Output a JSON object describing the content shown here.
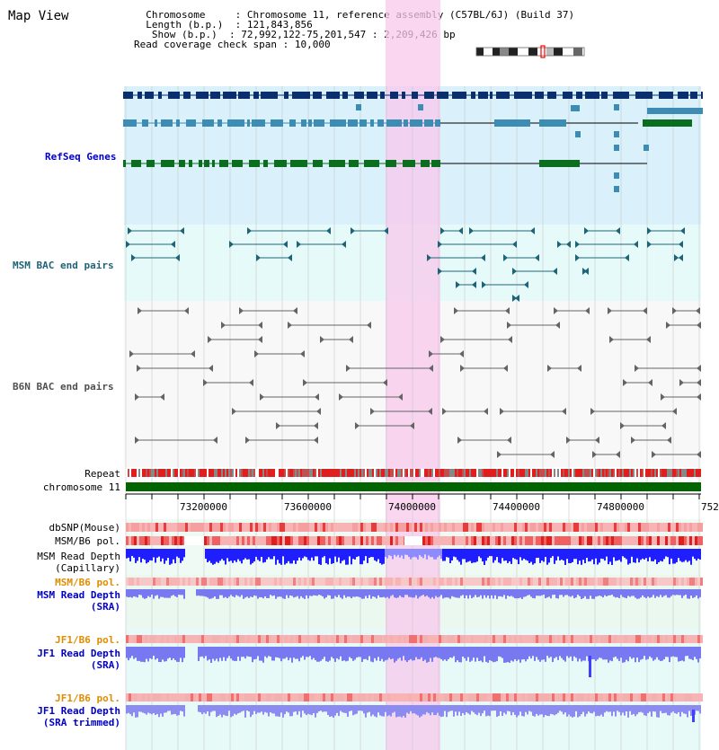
{
  "app": {
    "title": "Map View"
  },
  "info": {
    "chromosome_key": "Chromosome",
    "chromosome_val": "Chromosome 11, reference assembly (C57BL/6J) (Build 37)",
    "length_key": "Length (b.p.)",
    "length_val": "121,843,856",
    "show_key": "Show (b.p.)",
    "show_val": "72,992,122-75,201,547 : 2,209,426 bp",
    "coverage_key": "Read coverage check span",
    "coverage_val": "10,000"
  },
  "tracks": {
    "refseq": "RefSeq Genes",
    "msm_bac": "MSM BAC end pairs",
    "b6n_bac": "B6N BAC end pairs",
    "repeat": "Repeat",
    "chromosome": "chromosome 11",
    "dbsnp": "dbSNP(Mouse)",
    "msm_b6_pol": "MSM/B6 pol.",
    "msm_depth_cap_1": "MSM Read Depth",
    "msm_depth_cap_2": "(Capillary)",
    "msm_b6_pol_2": "MSM/B6 pol.",
    "msm_depth_sra_1": "MSM Read Depth",
    "msm_depth_sra_2": "(SRA)",
    "jf1_b6_pol": "JF1/B6 pol.",
    "jf1_depth_sra_1": "JF1 Read Depth",
    "jf1_depth_sra_2": "(SRA)",
    "jf1_b6_pol_2": "JF1/B6 pol.",
    "jf1_depth_trim_1": "JF1 Read Depth",
    "jf1_depth_trim_2": "(SRA trimmed)"
  },
  "axis": {
    "ticks": [
      "73200000",
      "73600000",
      "74000000",
      "74400000",
      "74800000",
      "752"
    ]
  },
  "colors": {
    "refseq_dark": "#0a2e6e",
    "refseq_mid": "#3c8cb4",
    "refseq_green": "#0a6e1e",
    "highlight": "#f8c8ec",
    "chromosome_bar": "#006400",
    "snp_red": "#f03c3c",
    "depth_blue": "#1e1eff",
    "depth_light": "#7878f0"
  }
}
